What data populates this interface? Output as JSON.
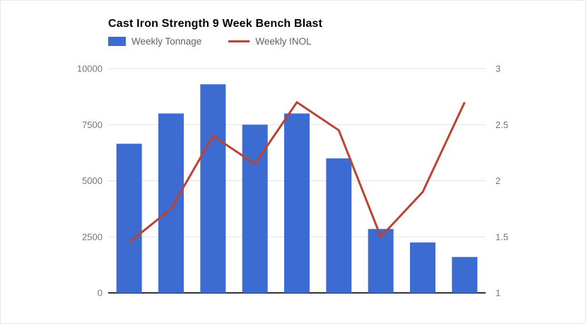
{
  "chart_data": {
    "type": "combo",
    "title": "Cast Iron Strength 9 Week Bench Blast",
    "grid": true,
    "legend_position": "top-left",
    "num_points": 9,
    "series": [
      {
        "name": "Weekly Tonnage",
        "render": "bar",
        "axis": "left",
        "color": "#3c6bd2",
        "values": [
          6650,
          8000,
          9300,
          7500,
          8000,
          6000,
          2850,
          2250,
          1600
        ]
      },
      {
        "name": "Weekly INOL",
        "render": "line",
        "axis": "right",
        "color": "#bc4231",
        "values": [
          1.45,
          1.75,
          2.4,
          2.15,
          2.7,
          2.45,
          1.5,
          1.9,
          2.7
        ]
      }
    ],
    "left_axis": {
      "tick_labels": [
        "0",
        "2500",
        "5000",
        "7500",
        "10000"
      ],
      "tick_values": [
        0,
        2500,
        5000,
        7500,
        10000
      ],
      "range": [
        0,
        10000
      ]
    },
    "right_axis": {
      "tick_labels": [
        "1",
        "1.5",
        "2",
        "2.5",
        "3"
      ],
      "tick_values": [
        1,
        1.5,
        2,
        2.5,
        3
      ],
      "range": [
        1,
        3
      ]
    },
    "x_axis": {
      "tick_labels": []
    }
  },
  "legend": {
    "items": [
      {
        "label": "Weekly Tonnage",
        "swatch": "bar",
        "color": "#3c6bd2"
      },
      {
        "label": "Weekly INOL",
        "swatch": "line",
        "color": "#bc4231"
      }
    ]
  },
  "styles": {
    "grid_color": "#e3e3e3",
    "axis_line_color": "#333333",
    "axis_label_color": "#757575",
    "legend_text_color": "#616161",
    "title_color": "#000000",
    "background": "#ffffff"
  }
}
